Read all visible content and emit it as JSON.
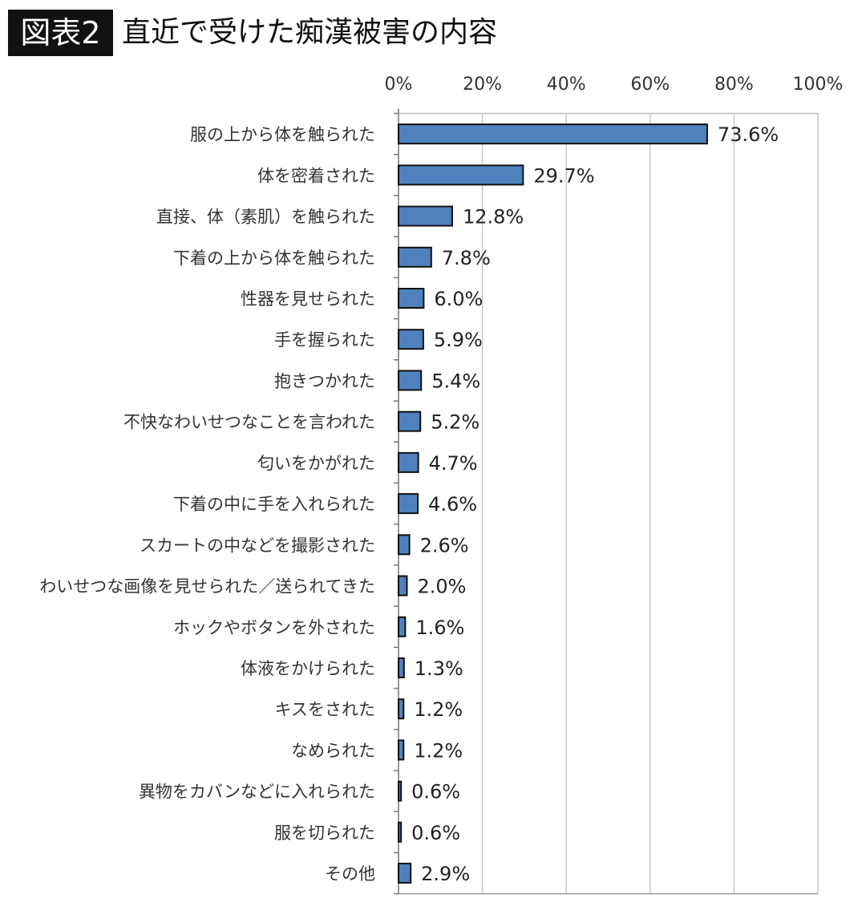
{
  "header": {
    "badge": "図表2",
    "title": "直近で受けた痴漢被害の内容"
  },
  "chart_data": {
    "type": "bar",
    "orientation": "horizontal",
    "title": "直近で受けた痴漢被害の内容",
    "categories": [
      "服の上から体を触られた",
      "体を密着された",
      "直接、体（素肌）を触られた",
      "下着の上から体を触られた",
      "性器を見せられた",
      "手を握られた",
      "抱きつかれた",
      "不快なわいせつなことを言われた",
      "匂いをかがれた",
      "下着の中に手を入れられた",
      "スカートの中などを撮影された",
      "わいせつな画像を見せられた／送られてきた",
      "ホックやボタンを外された",
      "体液をかけられた",
      "キスをされた",
      "なめられた",
      "異物をカバンなどに入れられた",
      "服を切られた",
      "その他"
    ],
    "values": [
      73.6,
      29.7,
      12.8,
      7.8,
      6.0,
      5.9,
      5.4,
      5.2,
      4.7,
      4.6,
      2.6,
      2.0,
      1.6,
      1.3,
      1.2,
      1.2,
      0.6,
      0.6,
      2.9
    ],
    "data_labels": [
      "73.6%",
      "29.7%",
      "12.8%",
      "7.8%",
      "6.0%",
      "5.9%",
      "5.4%",
      "5.2%",
      "4.7%",
      "4.6%",
      "2.6%",
      "2.0%",
      "1.6%",
      "1.3%",
      "1.2%",
      "1.2%",
      "0.6%",
      "0.6%",
      "2.9%"
    ],
    "xlim": [
      0,
      100
    ],
    "x_ticks": [
      0,
      20,
      40,
      60,
      80,
      100
    ],
    "x_tick_labels": [
      "0%",
      "20%",
      "40%",
      "60%",
      "80%",
      "100%"
    ],
    "axis_position": "top",
    "grid": true,
    "legend": "none",
    "colors": {
      "bar": "#4f81bd",
      "bar_edge": "#111111",
      "grid": "#c8c8c8"
    }
  }
}
